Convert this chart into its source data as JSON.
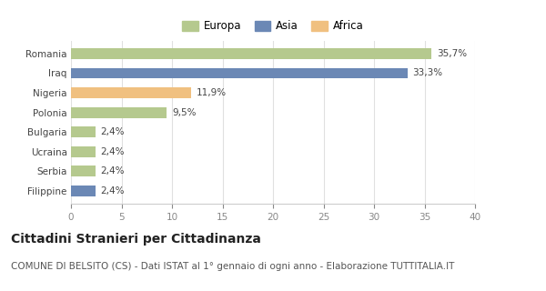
{
  "categories": [
    "Romania",
    "Iraq",
    "Nigeria",
    "Polonia",
    "Bulgaria",
    "Ucraina",
    "Serbia",
    "Filippine"
  ],
  "values": [
    35.7,
    33.3,
    11.9,
    9.5,
    2.4,
    2.4,
    2.4,
    2.4
  ],
  "labels": [
    "35,7%",
    "33,3%",
    "11,9%",
    "9,5%",
    "2,4%",
    "2,4%",
    "2,4%",
    "2,4%"
  ],
  "colors": [
    "#b5c98e",
    "#6b88b5",
    "#f0c080",
    "#b5c98e",
    "#b5c98e",
    "#b5c98e",
    "#b5c98e",
    "#6b88b5"
  ],
  "continents": [
    "Europa",
    "Asia",
    "Africa"
  ],
  "legend_colors": [
    "#b5c98e",
    "#6b88b5",
    "#f0c080"
  ],
  "xlim": [
    0,
    40
  ],
  "xticks": [
    0,
    5,
    10,
    15,
    20,
    25,
    30,
    35,
    40
  ],
  "title": "Cittadini Stranieri per Cittadinanza",
  "subtitle": "COMUNE DI BELSITO (CS) - Dati ISTAT al 1° gennaio di ogni anno - Elaborazione TUTTITALIA.IT",
  "background_color": "#ffffff",
  "bar_height": 0.55,
  "title_fontsize": 10,
  "subtitle_fontsize": 7.5,
  "label_fontsize": 7.5,
  "tick_fontsize": 7.5,
  "legend_fontsize": 8.5
}
